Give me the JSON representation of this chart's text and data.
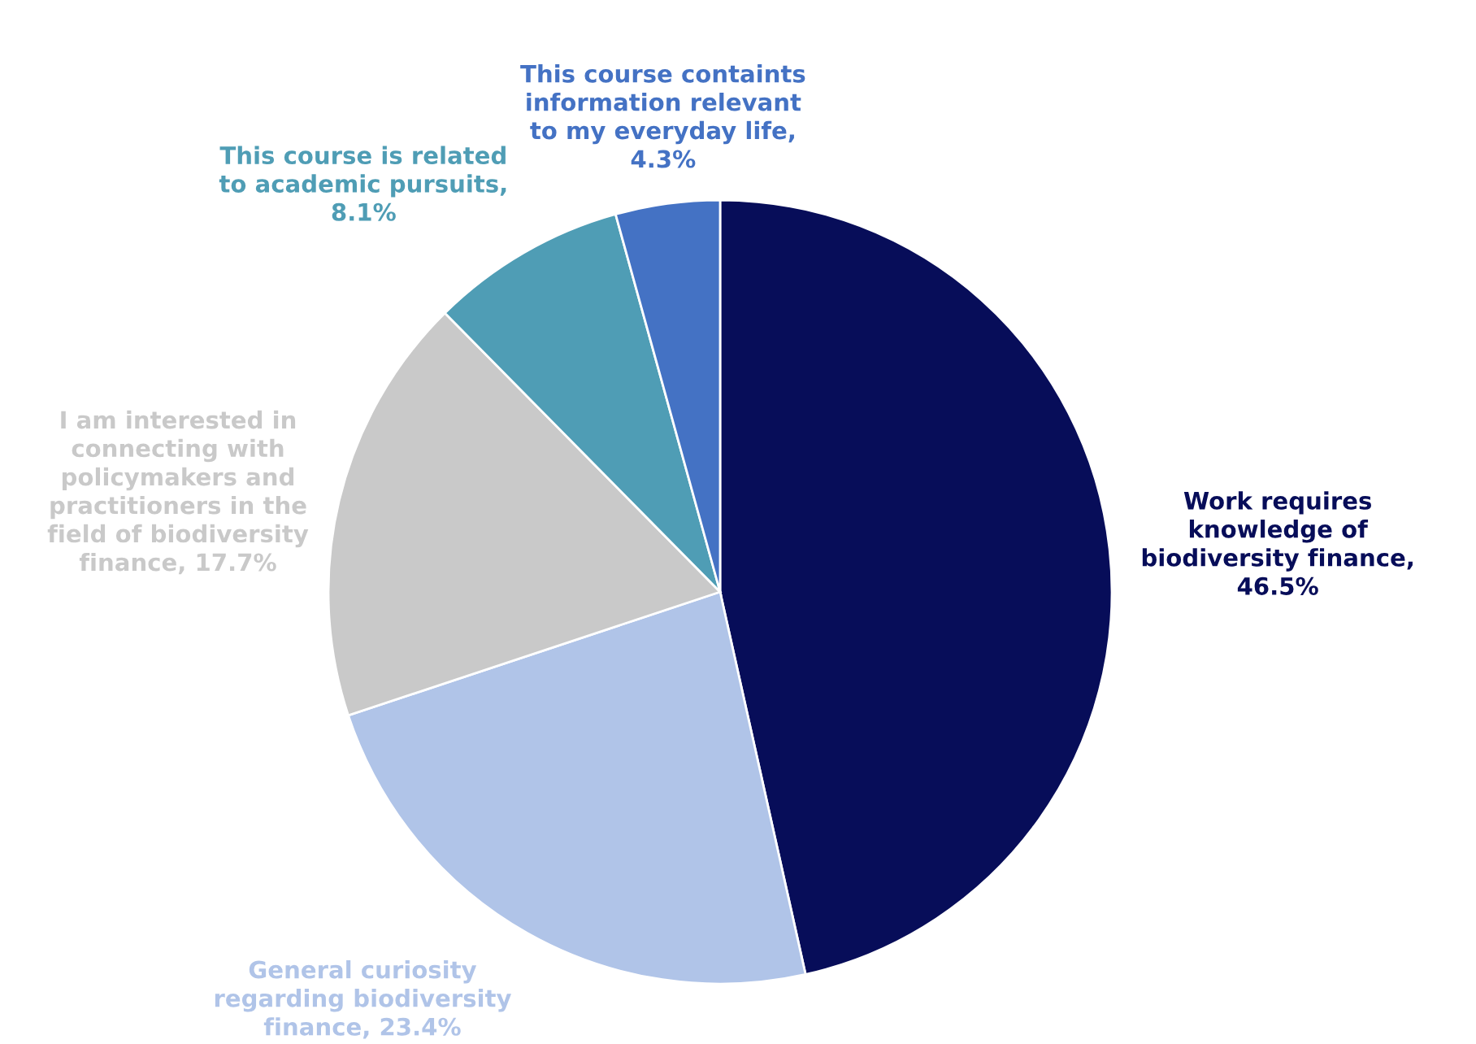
{
  "chart_data": {
    "type": "pie",
    "categories": [
      "Work requires\nknowledge of\nbiodiversity finance,\n46.5%",
      "General curiosity\nregarding biodiversity\nfinance, 23.4%",
      "I am interested in\nconnecting with\npolicymakers and\npractitioners in the\nfield of biodiversity\nfinance, 17.7%",
      "This course is related\nto academic pursuits,\n8.1%",
      "This course containts\ninformation relevant\nto my everyday life,\n4.3%"
    ],
    "values": [
      46.5,
      23.4,
      17.7,
      8.1,
      4.3
    ],
    "colors": [
      "#070d59",
      "#b0c4e8",
      "#c9c9c9",
      "#4f9db5",
      "#4472c4"
    ]
  }
}
